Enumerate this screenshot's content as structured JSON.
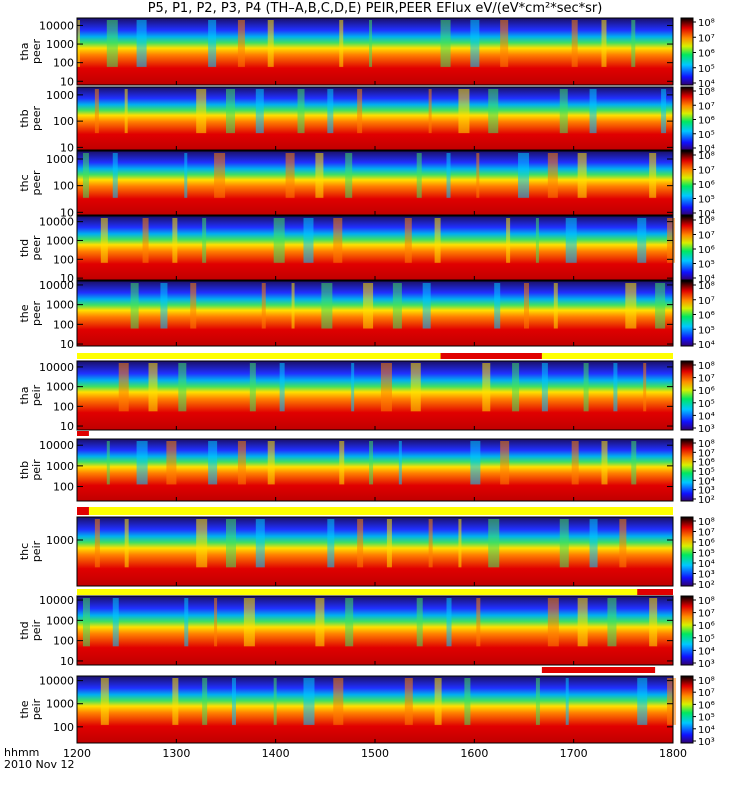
{
  "title": "P5, P1, P2, P3, P4 (TH–A,B,C,D,E) PEIR,PEER EFlux eV/(eV*cm²*sec*sr)",
  "footer": {
    "time_label": "hhmm",
    "date_label": "2010 Nov 12"
  },
  "chart_data": {
    "type": "heatmap",
    "title": "P5, P1, P2, P3, P4 (TH–A,B,C,D,E) PEIR,PEER EFlux eV/(eV*cm²*sec*sr)",
    "x_axis": {
      "unit": "hhmm",
      "range": [
        "1200",
        "1800"
      ],
      "ticks": [
        "1200",
        "1300",
        "1400",
        "1500",
        "1600",
        "1700",
        "1800"
      ]
    },
    "y_scale": "log",
    "colormap": "rainbow (blue-low to red-high, black at max)",
    "panels": [
      {
        "name": "tha peer",
        "ylabel": [
          "tha",
          "peer"
        ],
        "y_ticks": [
          "10",
          "100",
          "1000",
          "10000"
        ],
        "cbar_ticks": [
          "10⁴",
          "10⁵",
          "10⁶",
          "10⁷",
          "10⁸"
        ]
      },
      {
        "name": "thb peer",
        "ylabel": [
          "thb",
          "peer"
        ],
        "y_ticks": [
          "10",
          "100",
          "1000"
        ],
        "cbar_ticks": [
          "10⁴",
          "10⁵",
          "10⁶",
          "10⁷",
          "10⁸"
        ]
      },
      {
        "name": "thc peer",
        "ylabel": [
          "thc",
          "peer"
        ],
        "y_ticks": [
          "10",
          "100",
          "1000"
        ],
        "cbar_ticks": [
          "10⁴",
          "10⁵",
          "10⁶",
          "10⁷",
          "10⁸"
        ]
      },
      {
        "name": "thd peer",
        "ylabel": [
          "thd",
          "peer"
        ],
        "y_ticks": [
          "10",
          "100",
          "1000",
          "10000"
        ],
        "cbar_ticks": [
          "10⁴",
          "10⁵",
          "10⁶",
          "10⁷",
          "10⁸"
        ]
      },
      {
        "name": "the peer",
        "ylabel": [
          "the",
          "peer"
        ],
        "y_ticks": [
          "10",
          "100",
          "1000",
          "10000"
        ],
        "cbar_ticks": [
          "10⁴",
          "10⁵",
          "10⁶",
          "10⁷",
          "10⁸"
        ]
      },
      {
        "name": "tha peir",
        "ylabel": [
          "tha",
          "peir"
        ],
        "y_ticks": [
          "10",
          "100",
          "1000",
          "10000"
        ],
        "cbar_ticks": [
          "10³",
          "10⁴",
          "10⁵",
          "10⁶",
          "10⁷",
          "10⁸"
        ]
      },
      {
        "name": "thb peir",
        "ylabel": [
          "thb",
          "peir"
        ],
        "y_ticks": [
          "100",
          "1000",
          "10000"
        ],
        "cbar_ticks": [
          "10²",
          "10³",
          "10⁴",
          "10⁵",
          "10⁶",
          "10⁷",
          "10⁸"
        ]
      },
      {
        "name": "thc peir",
        "ylabel": [
          "thc",
          "peir"
        ],
        "y_ticks": [
          "1000"
        ],
        "cbar_ticks": [
          "10²",
          "10³",
          "10⁴",
          "10⁵",
          "10⁶",
          "10⁷",
          "10⁸"
        ]
      },
      {
        "name": "thd peir",
        "ylabel": [
          "thd",
          "peir"
        ],
        "y_ticks": [
          "10",
          "100",
          "1000",
          "10000"
        ],
        "cbar_ticks": [
          "10³",
          "10⁴",
          "10⁵",
          "10⁶",
          "10⁷",
          "10⁸"
        ]
      },
      {
        "name": "the peir",
        "ylabel": [
          "the",
          "peir"
        ],
        "y_ticks": [
          "100",
          "1000",
          "10000"
        ],
        "cbar_ticks": [
          "10³",
          "10⁴",
          "10⁵",
          "10⁶",
          "10⁷",
          "10⁸"
        ]
      }
    ]
  }
}
